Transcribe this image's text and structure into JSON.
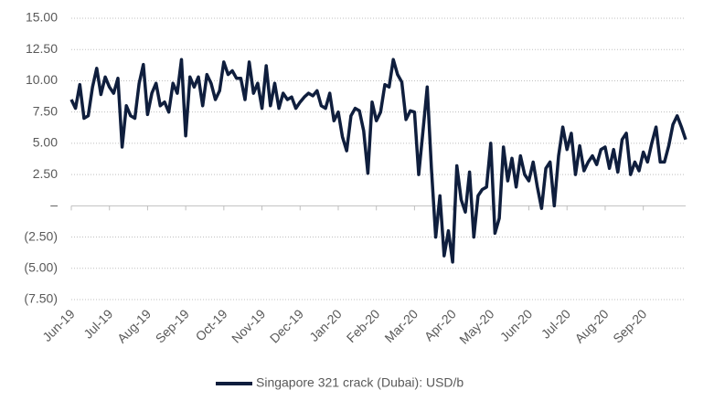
{
  "chart_data": {
    "type": "line",
    "series": [
      {
        "name": "Singapore 321 crack (Dubai): USD/b",
        "color": "#0f1e3d",
        "values": [
          8.5,
          7.8,
          9.7,
          7.0,
          7.2,
          9.5,
          11.0,
          8.9,
          10.3,
          9.5,
          9.0,
          10.2,
          4.7,
          8.0,
          7.2,
          7.0,
          9.8,
          11.3,
          7.3,
          9.0,
          9.8,
          8.0,
          8.3,
          7.5,
          9.8,
          9.0,
          11.7,
          5.6,
          10.3,
          9.5,
          10.3,
          8.0,
          10.5,
          9.8,
          8.5,
          9.2,
          11.5,
          10.5,
          10.8,
          10.2,
          10.2,
          8.5,
          11.5,
          9.0,
          9.8,
          7.8,
          11.2,
          8.0,
          9.8,
          7.8,
          9.0,
          8.5,
          8.7,
          7.8,
          8.3,
          8.7,
          9.0,
          8.8,
          9.2,
          8.0,
          7.8,
          9.0,
          6.8,
          7.5,
          5.5,
          4.4,
          7.2,
          7.8,
          7.6,
          6.0,
          2.6,
          8.3,
          6.8,
          7.5,
          9.7,
          9.5,
          11.7,
          10.5,
          9.9,
          6.9,
          7.6,
          7.5,
          2.5,
          6.0,
          9.5,
          3.0,
          -2.5,
          0.8,
          -4.0,
          -2.0,
          -4.5,
          3.2,
          0.5,
          -0.5,
          2.7,
          -2.5,
          0.8,
          1.3,
          1.5,
          5.0,
          -2.2,
          -1.0,
          4.7,
          2.0,
          3.8,
          1.5,
          4.0,
          2.5,
          2.0,
          3.5,
          1.5,
          -0.2,
          3.0,
          3.5,
          0.0,
          4.0,
          6.3,
          4.5,
          5.8,
          2.5,
          4.8,
          2.8,
          3.5,
          4.0,
          3.3,
          4.5,
          4.7,
          3.0,
          4.5,
          2.7,
          5.3,
          5.8,
          2.5,
          3.5,
          2.8,
          4.3,
          3.5,
          5.0,
          6.3,
          3.5,
          3.5,
          4.8,
          6.5,
          7.2,
          6.3,
          5.3
        ]
      }
    ],
    "xlim": [
      0,
      145
    ],
    "xticks": [
      {
        "value": 0,
        "label": "Jun-19"
      },
      {
        "value": 9,
        "label": "Jul-19"
      },
      {
        "value": 18,
        "label": "Aug-19"
      },
      {
        "value": 27,
        "label": "Sep-19"
      },
      {
        "value": 36,
        "label": "Oct-19"
      },
      {
        "value": 45,
        "label": "Nov-19"
      },
      {
        "value": 54,
        "label": "Dec-19"
      },
      {
        "value": 63,
        "label": "Jan-20"
      },
      {
        "value": 72,
        "label": "Feb-20"
      },
      {
        "value": 81,
        "label": "Mar-20"
      },
      {
        "value": 90,
        "label": "Apr-20"
      },
      {
        "value": 99,
        "label": "May-20"
      },
      {
        "value": 108,
        "label": "Jun-20"
      },
      {
        "value": 117,
        "label": "Jul-20"
      },
      {
        "value": 126,
        "label": "Aug-20"
      },
      {
        "value": 135,
        "label": "Sep-20"
      }
    ],
    "ylim": [
      -7.5,
      15
    ],
    "yticks": [
      {
        "value": -7.5,
        "label": "(7.50)"
      },
      {
        "value": -5,
        "label": "(5.00)"
      },
      {
        "value": -2.5,
        "label": "(2.50)"
      },
      {
        "value": 0,
        "label": "–"
      },
      {
        "value": 2.5,
        "label": "2.50"
      },
      {
        "value": 5,
        "label": "5.00"
      },
      {
        "value": 7.5,
        "label": "7.50"
      },
      {
        "value": 10,
        "label": "10.00"
      },
      {
        "value": 12.5,
        "label": "12.50"
      },
      {
        "value": 15,
        "label": "15.00"
      }
    ],
    "grid": true
  }
}
